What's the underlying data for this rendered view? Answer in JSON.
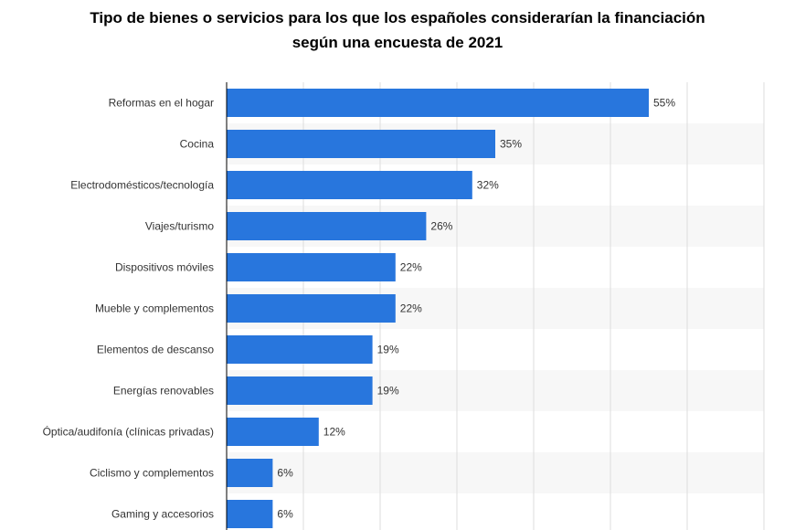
{
  "title_lines": [
    "Tipo de bienes o servicios para los que los españoles considerarían la financiación",
    "según una encuesta de 2021"
  ],
  "colors": {
    "bar": "#2876dd",
    "stripe": "#f7f7f7",
    "grid": "#dcdcdc",
    "axis": "#000000",
    "text": "#333333"
  },
  "chart_data": {
    "type": "bar",
    "orientation": "horizontal",
    "title": "Tipo de bienes o servicios para los que los españoles considerarían la financiación según una encuesta de 2021",
    "categories": [
      "Reformas en el hogar",
      "Cocina",
      "Electrodomésticos/tecnología",
      "Viajes/turismo",
      "Dispositivos móviles",
      "Mueble y complementos",
      "Elementos de descanso",
      "Energías renovables",
      "Óptica/audifonía (clínicas privadas)",
      "Ciclismo y complementos",
      "Gaming y accesorios"
    ],
    "values": [
      55,
      35,
      32,
      26,
      22,
      22,
      19,
      19,
      12,
      6,
      6
    ],
    "value_labels": [
      "55%",
      "35%",
      "32%",
      "26%",
      "22%",
      "22%",
      "19%",
      "19%",
      "12%",
      "6%",
      "6%"
    ],
    "unit": "%",
    "xlim": [
      0,
      70
    ],
    "grid_step": 10,
    "xlabel": "",
    "ylabel": ""
  }
}
